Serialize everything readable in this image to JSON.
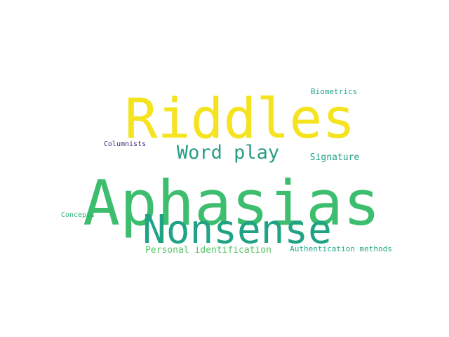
{
  "words": [
    {
      "text": "Riddles",
      "color": "#f4e31e"
    },
    {
      "text": "Aphasias",
      "color": "#3dbe6e"
    },
    {
      "text": "Nonsense",
      "color": "#20a284"
    },
    {
      "text": "Word play",
      "color": "#2a9d84"
    },
    {
      "text": "Biometrics",
      "color": "#25a68a"
    },
    {
      "text": "Columnists",
      "color": "#482d79"
    },
    {
      "text": "Signature",
      "color": "#22a085"
    },
    {
      "text": "Concepts",
      "color": "#2ab07a"
    },
    {
      "text": "Personal identification",
      "color": "#56c466"
    },
    {
      "text": "Authentication methods",
      "color": "#25a98a"
    }
  ]
}
